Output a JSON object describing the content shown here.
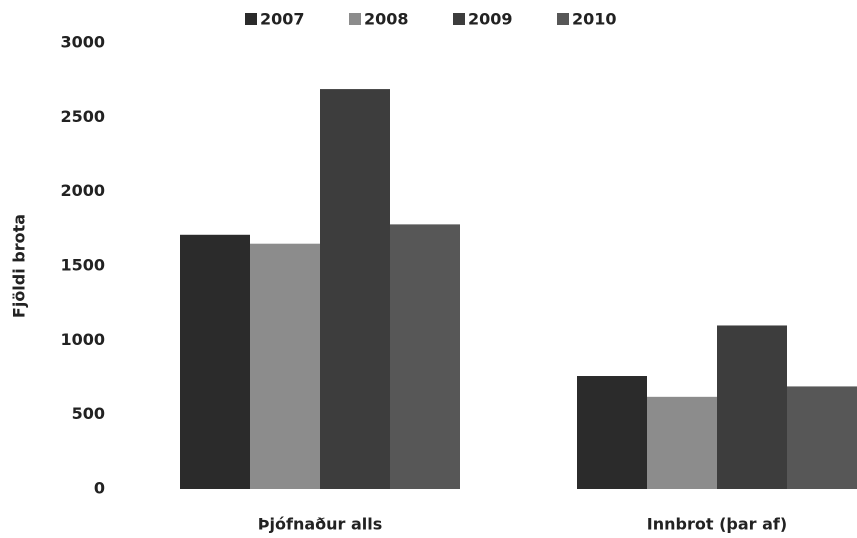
{
  "chart_data": {
    "type": "bar",
    "categories": [
      "Þjófnaður alls",
      "Innbrot (þar af)"
    ],
    "series": [
      {
        "name": "2007",
        "color": "#2b2b2b",
        "values": [
          1710,
          760
        ]
      },
      {
        "name": "2008",
        "color": "#8c8c8c",
        "values": [
          1650,
          620
        ]
      },
      {
        "name": "2009",
        "color": "#3d3d3d",
        "values": [
          2690,
          1100
        ]
      },
      {
        "name": "2010",
        "color": "#575757",
        "values": [
          1780,
          690
        ]
      }
    ],
    "ylabel": "Fjöldi brota",
    "ylim": [
      0,
      3000
    ],
    "yticks": [
      0,
      500,
      1000,
      1500,
      2000,
      2500,
      3000
    ],
    "grid": false,
    "legend": "top"
  }
}
